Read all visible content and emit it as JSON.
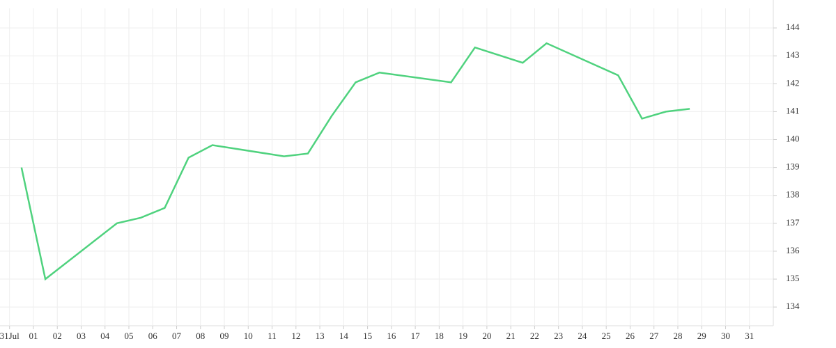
{
  "chart_data": {
    "type": "line",
    "x": [
      0.5,
      1.5,
      4.5,
      5.5,
      6.5,
      7.5,
      8.5,
      11.5,
      12.5,
      13.5,
      14.5,
      15.5,
      18.5,
      19.5,
      21.5,
      22.5,
      25.5,
      26.5,
      27.5,
      28.5
    ],
    "series": [
      {
        "color": "#4fd27e",
        "values": [
          139.0,
          135.0,
          137.0,
          137.2,
          137.55,
          139.35,
          139.8,
          139.4,
          139.5,
          140.85,
          142.05,
          142.4,
          142.05,
          143.3,
          142.75,
          143.45,
          142.3,
          140.75,
          141.0,
          141.1
        ]
      }
    ],
    "xlim": [
      -0.4,
      32
    ],
    "xticks": [
      {
        "value": 0,
        "label": "31Jul"
      },
      {
        "value": 1,
        "label": "01"
      },
      {
        "value": 2,
        "label": "02"
      },
      {
        "value": 3,
        "label": "03"
      },
      {
        "value": 4,
        "label": "04"
      },
      {
        "value": 5,
        "label": "05"
      },
      {
        "value": 6,
        "label": "06"
      },
      {
        "value": 7,
        "label": "07"
      },
      {
        "value": 8,
        "label": "08"
      },
      {
        "value": 9,
        "label": "09"
      },
      10,
      11,
      12,
      13,
      14,
      15,
      16,
      17,
      18,
      19,
      20,
      21,
      22,
      23,
      24,
      25,
      26,
      27,
      28,
      29,
      30,
      31
    ],
    "ylim": [
      133.33,
      145
    ],
    "yticks": [
      134,
      135,
      136,
      137,
      138,
      139,
      140,
      141,
      142,
      143,
      144
    ],
    "grid": true
  }
}
